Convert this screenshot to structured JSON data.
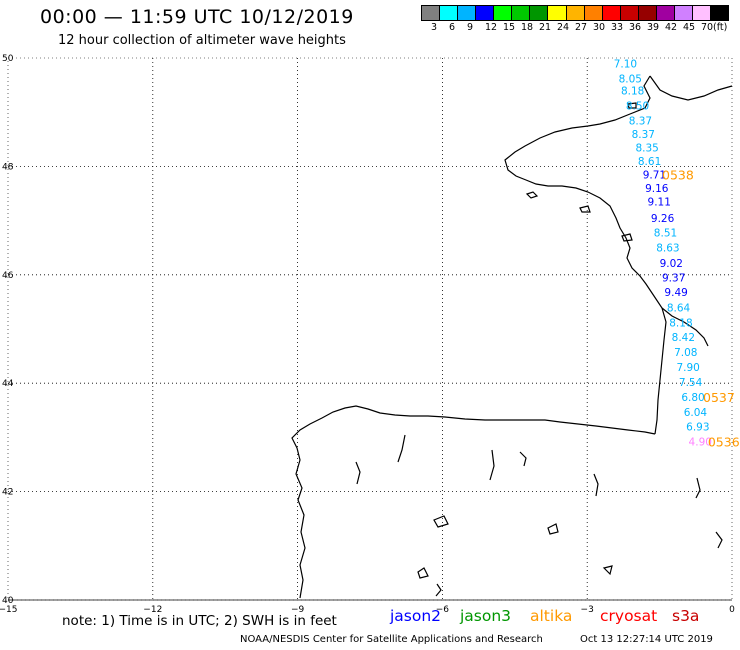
{
  "header": {
    "title": "00:00 — 11:59 UTC 10/12/2019",
    "subtitle": "12 hour collection of altimeter wave heights"
  },
  "colorbar": {
    "colors": [
      "#808080",
      "#00ffff",
      "#00b4ff",
      "#0000ff",
      "#00ff00",
      "#00c800",
      "#009600",
      "#ffff00",
      "#ffb400",
      "#ff8000",
      "#ff0000",
      "#c80000",
      "#960000",
      "#a000a0",
      "#d080ff",
      "#ffc0ff",
      "#000000"
    ],
    "labels": [
      "3",
      "6",
      "9",
      "12",
      "15",
      "18",
      "21",
      "24",
      "27",
      "30",
      "33",
      "36",
      "39",
      "42",
      "45",
      "70",
      "(ft)"
    ]
  },
  "axes": {
    "lat_labels": [
      "50",
      "48",
      "46",
      "44",
      "42",
      "40"
    ],
    "lon_labels": [
      "−15",
      "−12",
      "−9",
      "−6",
      "−3",
      "0"
    ]
  },
  "chart_data": {
    "type": "scatter",
    "xlim": [
      -15,
      0
    ],
    "ylim": [
      40,
      50
    ],
    "grid": true,
    "points": [
      {
        "lon": -2.45,
        "lat": 49.9,
        "value": "7.10",
        "color": "#00b4ff"
      },
      {
        "lon": -2.35,
        "lat": 49.62,
        "value": "8.05",
        "color": "#00b4ff"
      },
      {
        "lon": -2.3,
        "lat": 49.4,
        "value": "8.18",
        "color": "#00b4ff"
      },
      {
        "lon": -2.2,
        "lat": 49.12,
        "value": "8.50",
        "color": "#00b4ff"
      },
      {
        "lon": -2.14,
        "lat": 48.85,
        "value": "8.37",
        "color": "#00b4ff"
      },
      {
        "lon": -2.08,
        "lat": 48.6,
        "value": "8.37",
        "color": "#00b4ff"
      },
      {
        "lon": -2.0,
        "lat": 48.35,
        "value": "8.35",
        "color": "#00b4ff"
      },
      {
        "lon": -1.95,
        "lat": 48.1,
        "value": "8.61",
        "color": "#00b4ff"
      },
      {
        "lon": -1.85,
        "lat": 47.85,
        "value": "9.71",
        "color": "#0000ff"
      },
      {
        "lon": -1.8,
        "lat": 47.6,
        "value": "9.16",
        "color": "#0000ff"
      },
      {
        "lon": -1.75,
        "lat": 47.35,
        "value": "9.11",
        "color": "#0000ff"
      },
      {
        "lon": -1.68,
        "lat": 47.05,
        "value": "9.26",
        "color": "#0000ff"
      },
      {
        "lon": -1.62,
        "lat": 46.78,
        "value": "8.51",
        "color": "#00b4ff"
      },
      {
        "lon": -1.57,
        "lat": 46.5,
        "value": "8.63",
        "color": "#00b4ff"
      },
      {
        "lon": -1.5,
        "lat": 46.22,
        "value": "9.02",
        "color": "#0000ff"
      },
      {
        "lon": -1.45,
        "lat": 45.95,
        "value": "9.37",
        "color": "#0000ff"
      },
      {
        "lon": -1.4,
        "lat": 45.68,
        "value": "9.49",
        "color": "#0000ff"
      },
      {
        "lon": -1.35,
        "lat": 45.4,
        "value": "8.64",
        "color": "#00b4ff"
      },
      {
        "lon": -1.3,
        "lat": 45.12,
        "value": "8.18",
        "color": "#00b4ff"
      },
      {
        "lon": -1.25,
        "lat": 44.85,
        "value": "8.42",
        "color": "#00b4ff"
      },
      {
        "lon": -1.2,
        "lat": 44.58,
        "value": "7.08",
        "color": "#00b4ff"
      },
      {
        "lon": -1.15,
        "lat": 44.3,
        "value": "7.90",
        "color": "#00b4ff"
      },
      {
        "lon": -1.1,
        "lat": 44.02,
        "value": "7.54",
        "color": "#00b4ff"
      },
      {
        "lon": -1.05,
        "lat": 43.75,
        "value": "6.80",
        "color": "#00b4ff"
      },
      {
        "lon": -1.0,
        "lat": 43.47,
        "value": "6.04",
        "color": "#00b4ff"
      },
      {
        "lon": -0.95,
        "lat": 43.2,
        "value": "6.93",
        "color": "#00b4ff"
      },
      {
        "lon": -0.9,
        "lat": 42.92,
        "value": "4.90",
        "color": "#ff80ff"
      }
    ],
    "pass_labels": [
      {
        "text": "0538",
        "lon": -1.45,
        "lat": 47.85,
        "color": "#ff9900"
      },
      {
        "text": "0537",
        "lon": -0.6,
        "lat": 43.75,
        "color": "#ff9900"
      },
      {
        "text": "0536",
        "lon": -0.5,
        "lat": 42.92,
        "color": "#ff9900"
      }
    ]
  },
  "footer": {
    "note": "note: 1) Time is in UTC; 2) SWH is in feet",
    "missions": [
      {
        "name": "jason2",
        "color": "#0000ff"
      },
      {
        "name": "jason3",
        "color": "#009600"
      },
      {
        "name": "altika",
        "color": "#ff9900"
      },
      {
        "name": "cryosat",
        "color": "#ff0000"
      },
      {
        "name": "s3a",
        "color": "#c80000"
      }
    ],
    "credit": "NOAA/NESDIS Center for Satellite Applications and Research",
    "timestamp": "Oct 13 12:27:14 UTC 2019"
  }
}
